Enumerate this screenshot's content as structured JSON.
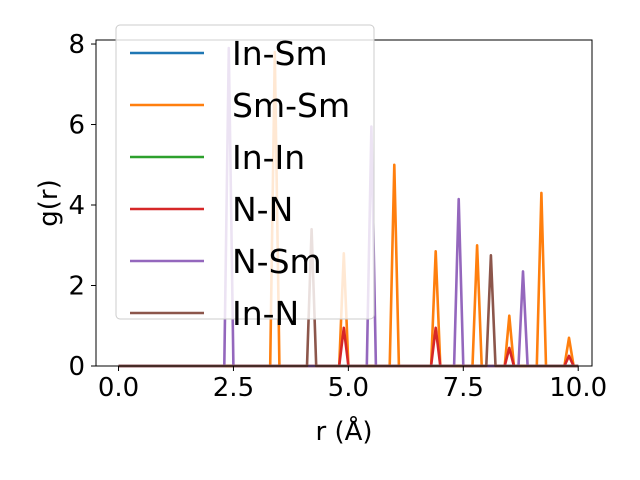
{
  "chart_data": {
    "type": "line",
    "title": "",
    "xlabel": "r (Å)",
    "ylabel": "g(r)",
    "xlim": [
      -0.49,
      10.3
    ],
    "ylim": [
      0,
      8.1
    ],
    "xticks": [
      "0.0",
      "2.5",
      "5.0",
      "7.5",
      "10.0"
    ],
    "xtick_values": [
      0,
      2.5,
      5,
      7.5,
      10
    ],
    "yticks": [
      "0",
      "2",
      "4",
      "6",
      "8"
    ],
    "ytick_values": [
      0,
      2,
      4,
      6,
      8
    ],
    "grid": false,
    "legend_position": "top-left",
    "series": [
      {
        "name": "In-Sm",
        "color": "#1f77b4",
        "peaks": []
      },
      {
        "name": "Sm-Sm",
        "color": "#ff7f0e",
        "peaks": [
          [
            3.4,
            7.8
          ],
          [
            4.9,
            2.8
          ],
          [
            6.0,
            5.0
          ],
          [
            6.9,
            2.85
          ],
          [
            7.8,
            3.0
          ],
          [
            8.5,
            1.25
          ],
          [
            9.2,
            4.3
          ],
          [
            9.8,
            0.7
          ]
        ]
      },
      {
        "name": "In-In",
        "color": "#2ca02c",
        "peaks": []
      },
      {
        "name": "N-N",
        "color": "#d62728",
        "peaks": [
          [
            4.9,
            0.95
          ],
          [
            6.9,
            0.95
          ],
          [
            8.5,
            0.45
          ],
          [
            9.8,
            0.25
          ]
        ]
      },
      {
        "name": "N-Sm",
        "color": "#9467bd",
        "peaks": [
          [
            2.4,
            7.9
          ],
          [
            5.5,
            5.95
          ],
          [
            7.4,
            4.15
          ],
          [
            8.8,
            2.35
          ]
        ]
      },
      {
        "name": "In-N",
        "color": "#8c564b",
        "peaks": [
          [
            4.2,
            3.4
          ],
          [
            8.1,
            2.75
          ]
        ]
      }
    ]
  }
}
